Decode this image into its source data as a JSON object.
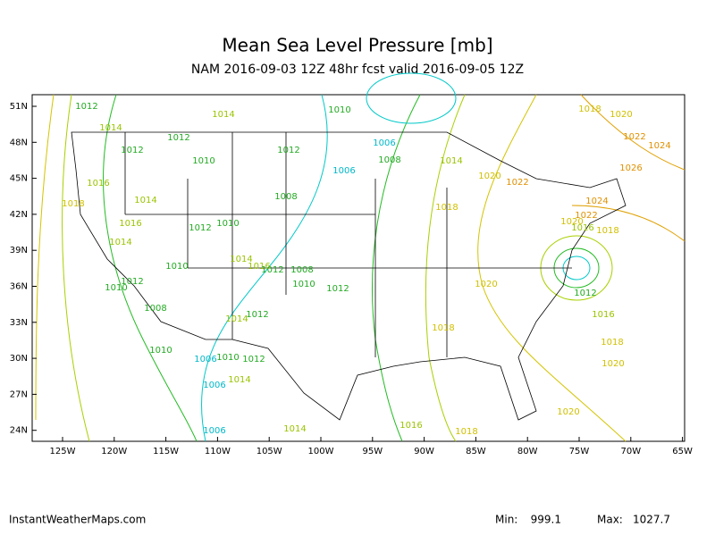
{
  "title": "Mean Sea Level Pressure [mb]",
  "subtitle": "NAM 2016-09-03 12Z 48hr fcst valid 2016-09-05 12Z",
  "lat_labels": [
    "51N",
    "48N",
    "45N",
    "42N",
    "39N",
    "36N",
    "33N",
    "30N",
    "27N",
    "24N"
  ],
  "lon_labels": [
    "125W",
    "120W",
    "115W",
    "110W",
    "105W",
    "100W",
    "95W",
    "90W",
    "85W",
    "80W",
    "75W",
    "70W",
    "65W"
  ],
  "contour_labels": [
    1012,
    1014,
    1014,
    1010,
    1012,
    1012,
    1012,
    1006,
    1006,
    1008,
    1010,
    1016,
    1014,
    1018,
    1008,
    1014,
    1020,
    1022,
    1018,
    1010,
    1016,
    1012,
    1014,
    1014,
    1016,
    1010,
    1012,
    1008,
    1012,
    1010,
    1010,
    1012,
    1008,
    1014,
    1012,
    1010,
    1006,
    1010,
    1012,
    1006,
    1014,
    1006,
    1014,
    1016,
    1018,
    1020,
    1018,
    1020,
    1016,
    1018,
    1020,
    1012,
    1018,
    1020,
    1022,
    1024,
    1026,
    1024,
    1022,
    1020,
    1018,
    1016
  ],
  "footer": {
    "source": "InstantWeatherMaps.com",
    "min_label": "Min:",
    "min_value": 999.1,
    "max_label": "Max:",
    "max_value": 1027.7
  }
}
